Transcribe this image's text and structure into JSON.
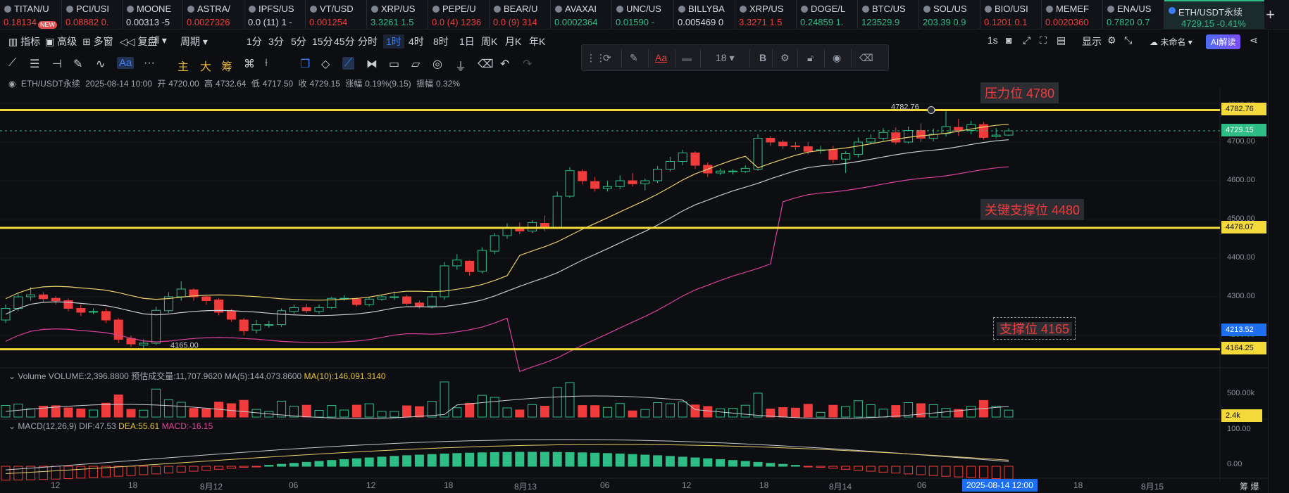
{
  "ticker": [
    {
      "name": "TITAN/U",
      "price": "0.18134 -",
      "color": "#f03c3c",
      "w": 88
    },
    {
      "name": "PCI/USI",
      "price": "0.08882 0.",
      "color": "#f03c3c",
      "w": 86
    },
    {
      "name": "MOONE",
      "price": "0.00313 -5",
      "color": "#d8dbe0",
      "w": 86
    },
    {
      "name": "ASTRA/",
      "price": "0.0027326",
      "color": "#f03c3c",
      "w": 87
    },
    {
      "name": "IPFS/US",
      "price": "0.0 (11) 1 -",
      "color": "#d8dbe0",
      "w": 87
    },
    {
      "name": "VT/USD",
      "price": "0.001254",
      "color": "#f03c3c",
      "w": 87
    },
    {
      "name": "XRP/US",
      "price": "3.3261 1.5",
      "color": "#2ebd85",
      "w": 87
    },
    {
      "name": "PEPE/U",
      "price": "0.0 (4) 1236",
      "color": "#f03c3c",
      "w": 87
    },
    {
      "name": "BEAR/U",
      "price": "0.0 (9) 314",
      "color": "#f03c3c",
      "w": 87
    },
    {
      "name": "AVAXAI",
      "price": "0.0002364",
      "color": "#2ebd85",
      "w": 87
    },
    {
      "name": "UNC/US",
      "price": "0.01590 -",
      "color": "#2ebd85",
      "w": 88
    },
    {
      "name": "BILLYBA",
      "price": "0.005469 0",
      "color": "#d8dbe0",
      "w": 87
    },
    {
      "name": "XRP/US",
      "price": "3.3271 1.5",
      "color": "#f03c3c",
      "w": 87
    },
    {
      "name": "DOGE/L",
      "price": "0.24859 1.",
      "color": "#2ebd85",
      "w": 87
    },
    {
      "name": "BTC/US",
      "price": "123529.9",
      "color": "#2ebd85",
      "w": 87
    },
    {
      "name": "SOL/US",
      "price": "203.39 0.9",
      "color": "#2ebd85",
      "w": 87
    },
    {
      "name": "BIO/USI",
      "price": "0.1201 0.1",
      "color": "#f03c3c",
      "w": 87
    },
    {
      "name": "MEMEF",
      "price": "0.0020360",
      "color": "#f03c3c",
      "w": 87
    },
    {
      "name": "ENA/US",
      "price": "0.7820 0.7",
      "color": "#2ebd85",
      "w": 87
    },
    {
      "name": "ETH/USDT永续",
      "price": "4729.15  -0.41%",
      "color": "#2ebd85",
      "w": 142,
      "active": true
    }
  ],
  "new_badge": "NEW",
  "toolbar1": {
    "indicators": "指标",
    "advanced": "高级",
    "multi": "多窗",
    "replay": "复盘",
    "period": "周期",
    "intervals": [
      "1分",
      "3分",
      "5分",
      "15分",
      "45分",
      "分时",
      "1时",
      "4时",
      "8时",
      "1日",
      "周K",
      "月K",
      "年K"
    ],
    "active_interval": "1时",
    "right_1s": "1s",
    "display": "显示",
    "unnamed": "未命名",
    "ai": "AI解读"
  },
  "toolbar2": {
    "main": "主",
    "big": "大",
    "chips": "筹",
    "text_tool": "Aa",
    "more": "···"
  },
  "drawbar": {
    "font_size": "18",
    "bold": "B",
    "text": "Aa"
  },
  "info": {
    "symbol": "ETH/USDT永续",
    "datetime": "2025-08-14 10:00",
    "open_label": "开",
    "open": "4720.00",
    "high_label": "高",
    "high": "4732.64",
    "low_label": "低",
    "low": "4717.50",
    "close_label": "收",
    "close": "4729.15",
    "chg_label": "涨幅",
    "chg": "0.19%(9.15)",
    "amp_label": "振幅",
    "amp": "0.32%"
  },
  "annotations": {
    "resistance": "压力位 4780",
    "key_support": "关键支撑位 4480",
    "support": "支撑位  4165"
  },
  "price_tags": {
    "p1": "4782.76",
    "p2": "4729.15",
    "p3": "4478.07",
    "p4": "4213.52",
    "p5": "4164.25",
    "vol": "2.4k"
  },
  "marks": {
    "high_mark": "4782.76",
    "low_mark": "4165.00"
  },
  "price_axis": [
    "4800.00",
    "4700.00",
    "4600.00",
    "4500.00",
    "4400.00",
    "4300.00",
    "4200.00"
  ],
  "volume": {
    "label": "Volume",
    "vol": "VOLUME:2,396.8800",
    "forecast": "预估成交量:11,707.9620",
    "ma5": "MA(5):144,073.8600",
    "ma10": "MA(10):146,091.3140",
    "axis_500k": "500.00k"
  },
  "macd": {
    "label": "MACD(12,26,9)",
    "dif": "DIF:47.53",
    "dea": "DEA:55.61",
    "macd": "MACD:-16.15",
    "axis_100": "100.00",
    "axis_0": "0.00"
  },
  "time_axis": [
    "12",
    "18",
    "8月12",
    "06",
    "12",
    "18",
    "8月13",
    "06",
    "12",
    "18",
    "8月14",
    "06",
    "18",
    "8月15"
  ],
  "time_now": "2025-08-14 12:00",
  "right_bottom": "筹  爆",
  "colors": {
    "up": "#2ebd85",
    "down": "#f03c3c",
    "yellow": "#f4d93a",
    "ma1": "#e8d06a",
    "ma2": "#c8cad0",
    "ma3": "#d8439a"
  }
}
